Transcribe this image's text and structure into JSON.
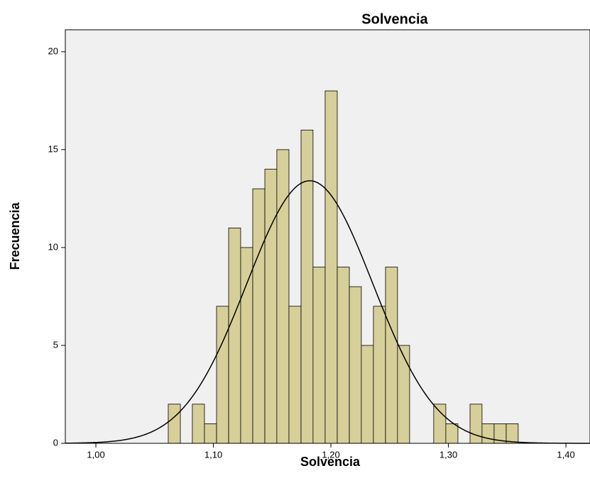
{
  "chart_data": {
    "type": "histogram",
    "title": "Solvencia",
    "x_label": "Solvencia",
    "y_label": "Frecuencia",
    "bins": [
      1.0616,
      1.0719,
      1.0821,
      1.0924,
      1.1027,
      1.113,
      1.1232,
      1.1335,
      1.1438,
      1.154,
      1.1643,
      1.1746,
      1.1848,
      1.1951,
      1.2054,
      1.2157,
      1.2259,
      1.2362,
      1.2465,
      1.2567,
      1.267,
      1.2773,
      1.2875,
      1.2978,
      1.3081,
      1.3184,
      1.3286,
      1.3389,
      1.3492,
      1.3594
    ],
    "values": [
      2,
      0,
      2,
      1,
      7,
      11,
      10,
      13,
      14,
      15,
      7,
      16,
      9,
      18,
      9,
      8,
      5,
      7,
      9,
      5,
      0,
      0,
      2,
      1,
      0,
      2,
      1,
      1,
      1
    ],
    "color": "#d7cf99",
    "xlim": [
      0.974,
      1.4205
    ],
    "ylim": [
      0,
      21.12
    ],
    "xticks": [
      {
        "value": 1.0,
        "label": "1,00"
      },
      {
        "value": 1.1,
        "label": "1,10"
      },
      {
        "value": 1.2,
        "label": "1,20"
      },
      {
        "value": 1.3,
        "label": "1,30"
      },
      {
        "value": 1.4,
        "label": "1,40"
      }
    ],
    "yticks": [
      0,
      5,
      10,
      15,
      20
    ],
    "normal_curve": true
  }
}
